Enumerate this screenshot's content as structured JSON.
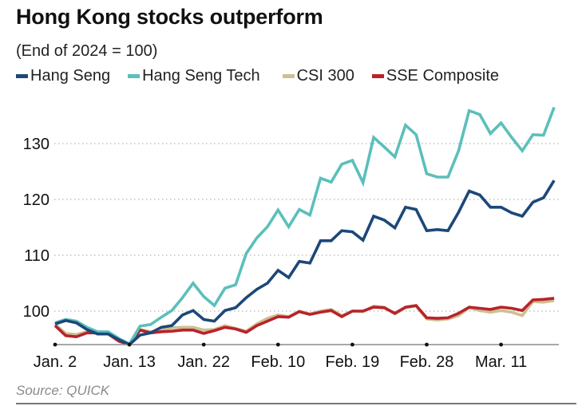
{
  "chart_data": {
    "type": "line",
    "title": "Hong Kong stocks outperform",
    "subtitle": "(End of 2024 = 100)",
    "xlabel": "",
    "ylabel": "",
    "ylim": [
      94,
      137
    ],
    "grid": true,
    "legend_position": "top-left",
    "yticks": [
      {
        "value": 100,
        "label": "100"
      },
      {
        "value": 110,
        "label": "110"
      },
      {
        "value": 120,
        "label": "120"
      },
      {
        "value": 130,
        "label": "130"
      }
    ],
    "xticks": [
      {
        "index": 0,
        "label": "Jan. 2"
      },
      {
        "index": 7,
        "label": "Jan. 13"
      },
      {
        "index": 14,
        "label": "Jan. 22"
      },
      {
        "index": 21,
        "label": "Feb. 10"
      },
      {
        "index": 28,
        "label": "Feb. 19"
      },
      {
        "index": 35,
        "label": "Feb. 28"
      },
      {
        "index": 42,
        "label": "Mar. 11"
      }
    ],
    "series": [
      {
        "name": "CSI 300",
        "color": "#cdbf93",
        "values": [
          97.6,
          96.0,
          95.8,
          96.3,
          96.0,
          96.0,
          95.0,
          94.0,
          96.7,
          96.3,
          96.6,
          97.0,
          97.1,
          97.1,
          96.6,
          96.7,
          97.4,
          96.9,
          96.4,
          97.7,
          98.7,
          99.3,
          99.0,
          100.0,
          99.5,
          100.0,
          100.3,
          99.2,
          100.0,
          99.9,
          100.9,
          100.7,
          99.5,
          100.6,
          100.9,
          98.6,
          98.4,
          98.6,
          99.2,
          100.6,
          100.1,
          99.8,
          100.1,
          99.8,
          99.2,
          101.7,
          101.6,
          101.9
        ]
      },
      {
        "name": "SSE Composite",
        "color": "#b8232a",
        "values": [
          97.4,
          95.6,
          95.4,
          96.1,
          96.1,
          95.9,
          94.6,
          94.0,
          96.6,
          96.1,
          96.3,
          96.4,
          96.6,
          96.6,
          96.0,
          96.5,
          97.1,
          96.8,
          96.2,
          97.4,
          98.2,
          99.0,
          98.9,
          99.9,
          99.4,
          99.8,
          100.1,
          99.0,
          100.0,
          100.0,
          100.7,
          100.6,
          99.6,
          100.7,
          101.0,
          98.8,
          98.7,
          98.8,
          99.6,
          100.7,
          100.5,
          100.3,
          100.7,
          100.5,
          100.1,
          102.0,
          102.1,
          102.3
        ]
      },
      {
        "name": "Hang Seng Tech",
        "color": "#5bbfbb",
        "values": [
          97.9,
          98.5,
          98.2,
          97.1,
          96.3,
          96.3,
          95.1,
          94.1,
          97.3,
          97.6,
          98.9,
          100.1,
          102.4,
          105.0,
          102.6,
          101.0,
          104.1,
          104.7,
          110.3,
          113.1,
          115.1,
          118.1,
          115.1,
          118.2,
          117.2,
          123.8,
          123.1,
          126.3,
          127.0,
          123.0,
          131.1,
          129.4,
          127.6,
          133.3,
          131.6,
          124.6,
          124.0,
          124.0,
          128.7,
          135.9,
          135.2,
          131.8,
          133.7,
          131.1,
          128.7,
          131.6,
          131.5,
          136.5
        ]
      },
      {
        "name": "Hang Seng",
        "color": "#1c4879",
        "values": [
          97.7,
          98.3,
          97.9,
          96.7,
          95.9,
          95.9,
          94.9,
          94.0,
          95.7,
          96.1,
          97.1,
          97.4,
          99.3,
          100.1,
          98.5,
          98.2,
          100.1,
          100.6,
          102.4,
          103.9,
          105.0,
          107.3,
          106.0,
          108.9,
          108.6,
          112.6,
          112.6,
          114.4,
          114.2,
          112.7,
          117.0,
          116.3,
          114.9,
          118.6,
          118.2,
          114.4,
          114.6,
          114.4,
          117.7,
          121.5,
          120.8,
          118.6,
          118.6,
          117.6,
          117.0,
          119.5,
          120.3,
          123.4
        ]
      }
    ]
  },
  "legend": [
    {
      "label": "Hang Seng",
      "color": "#1c4879"
    },
    {
      "label": "Hang Seng Tech",
      "color": "#5bbfbb"
    },
    {
      "label": "CSI 300",
      "color": "#cdbf93"
    },
    {
      "label": "SSE Composite",
      "color": "#b8232a"
    }
  ],
  "source": "Source: QUICK"
}
